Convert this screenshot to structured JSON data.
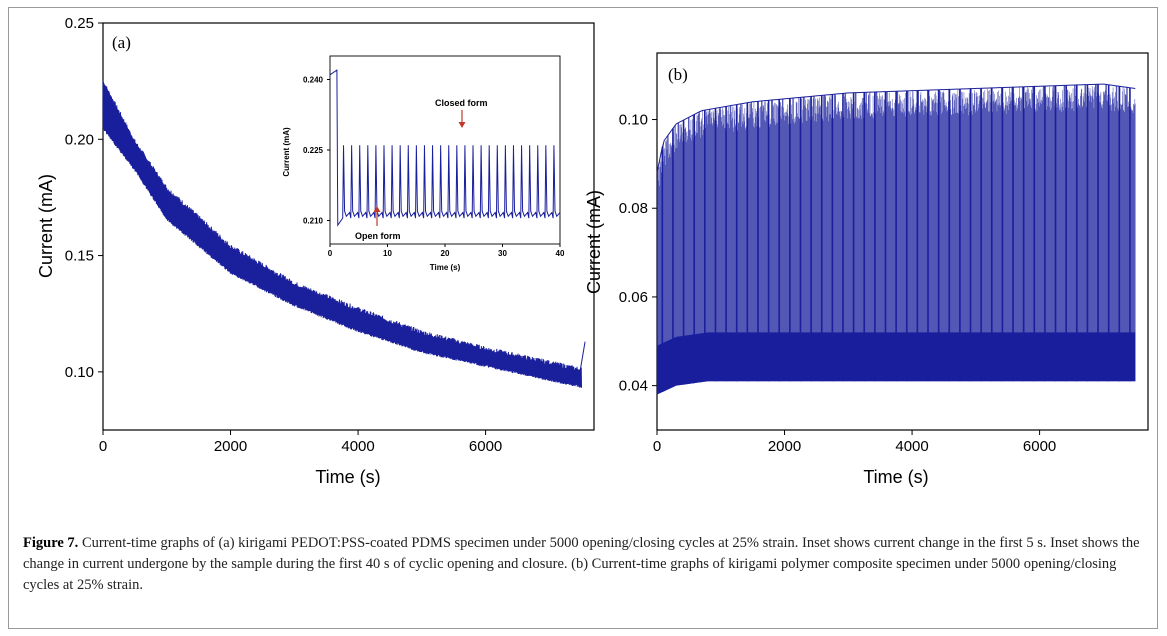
{
  "caption": {
    "label": "Figure 7.",
    "text": "Current-time graphs of (a) kirigami PEDOT:PSS-coated PDMS specimen under 5000 opening/closing cycles at 25% strain. Inset shows current change in the first 5 s. Inset shows the change in current undergone by the sample during the first 40 s of cyclic opening and closure. (b) Current-time graphs of kirigami polymer composite specimen under 5000 opening/closing cycles at 25% strain."
  },
  "colors": {
    "series": "#1a1f9c",
    "arrow": "#c0392b"
  },
  "chart_data": [
    {
      "panel": "(a)",
      "type": "line",
      "xlabel": "Time (s)",
      "ylabel": "Current (mA)",
      "xlim": [
        0,
        7700
      ],
      "ylim": [
        0.075,
        0.25
      ],
      "xticks": [
        "0",
        "2000",
        "4000",
        "6000"
      ],
      "yticks": [
        "0.10",
        "0.15",
        "0.20",
        "0.25"
      ],
      "series": [
        {
          "upper": {
            "x": [
              0,
              500,
              1000,
              2000,
              3000,
              4000,
              5000,
              6000,
              7000,
              7500
            ],
            "y": [
              0.225,
              0.199,
              0.179,
              0.154,
              0.138,
              0.127,
              0.117,
              0.11,
              0.104,
              0.101
            ]
          },
          "lower": {
            "x": [
              0,
              500,
              1000,
              2000,
              3000,
              4000,
              5000,
              6000,
              7000,
              7500
            ],
            "y": [
              0.205,
              0.187,
              0.166,
              0.143,
              0.129,
              0.118,
              0.109,
              0.103,
              0.097,
              0.094
            ]
          }
        }
      ],
      "inset": {
        "type": "line",
        "xlabel": "Time (s)",
        "ylabel": "Current (mA)",
        "xlim": [
          0,
          40
        ],
        "ylim": [
          0.205,
          0.245
        ],
        "xticks": [
          "0",
          "10",
          "20",
          "30",
          "40"
        ],
        "yticks": [
          "0.210",
          "0.225",
          "0.240"
        ],
        "initial": {
          "x": [
            0,
            1.2
          ],
          "y": [
            0.241,
            0.242
          ]
        },
        "peak": 0.226,
        "trough": 0.2105,
        "cycles": 27,
        "annotations": [
          "Closed form",
          "Open form"
        ]
      }
    },
    {
      "panel": "(b)",
      "type": "line",
      "xlabel": "Time (s)",
      "ylabel": "Current (mA)",
      "xlim": [
        0,
        7700
      ],
      "ylim": [
        0.03,
        0.115
      ],
      "xticks": [
        "0",
        "2000",
        "4000",
        "6000"
      ],
      "yticks": [
        "0.04",
        "0.06",
        "0.08",
        "0.10"
      ],
      "series": [
        {
          "upper": {
            "x": [
              0,
              100,
              300,
              700,
              1500,
              3000,
              5000,
              7000,
              7500
            ],
            "y": [
              0.088,
              0.095,
              0.099,
              0.102,
              0.104,
              0.106,
              0.107,
              0.108,
              0.107
            ]
          },
          "lower": {
            "x": [
              0,
              300,
              800,
              1500,
              3000,
              5000,
              7500
            ],
            "y": [
              0.038,
              0.04,
              0.041,
              0.041,
              0.041,
              0.041,
              0.041
            ]
          },
          "spikes": 45
        }
      ]
    }
  ]
}
